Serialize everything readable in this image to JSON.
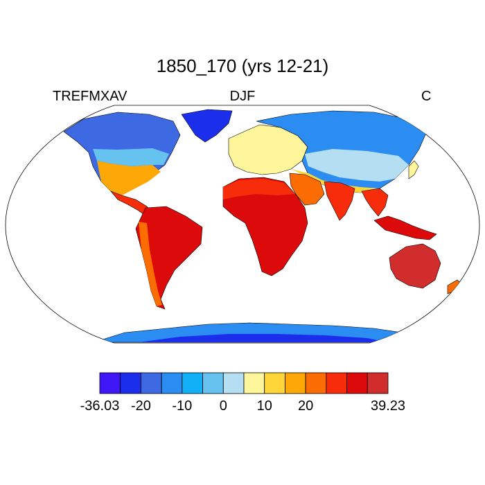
{
  "header": {
    "title": "1850_170 (yrs 12-21)",
    "variable": "TREFMXAV",
    "season": "DJF",
    "units": "C"
  },
  "colorbar": {
    "colors": [
      "#3f16f5",
      "#1b2eeb",
      "#3d6ae3",
      "#2b8cf1",
      "#12b0f6",
      "#66c3f0",
      "#b4def2",
      "#fff59a",
      "#ffd63a",
      "#fda806",
      "#fb6c02",
      "#f62c0a",
      "#dc0a0a",
      "#d22d2d"
    ],
    "labels": [
      "-36.03",
      "-20",
      "-10",
      "0",
      "10",
      "20",
      "39.23"
    ],
    "min": "-36.03",
    "max": "39.23"
  },
  "map": {
    "projection": "Robinson",
    "ocean_color": "#ffffff",
    "coastline_color": "#000000"
  }
}
